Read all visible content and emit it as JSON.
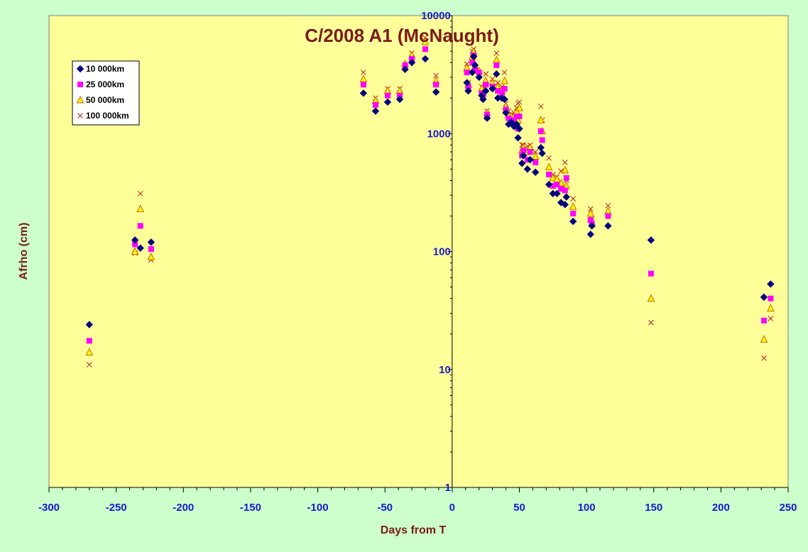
{
  "chart_data": {
    "type": "scatter",
    "title": "C/2008 A1 (McNaught)",
    "xlabel": "Days from T",
    "ylabel": "Afrho (cm)",
    "xlim": [
      -300,
      250
    ],
    "ylim": [
      1,
      10000
    ],
    "yscale": "log",
    "x_ticks": [
      "-300",
      "-250",
      "-200",
      "-150",
      "-100",
      "-50",
      "0",
      "50",
      "100",
      "150",
      "200",
      "250"
    ],
    "y_ticks": [
      "1",
      "10",
      "100",
      "1000",
      "10000"
    ],
    "legend_position": "top-left",
    "colors": {
      "plot_bg": "#ffff99",
      "outer_bg": "#ccffcc",
      "s10k": "#000080",
      "s25k": "#ff00ff",
      "s50k_fill": "#ffff00",
      "s50k_stroke": "#cc6600",
      "s100k": "#b22222"
    },
    "series": [
      {
        "name": "10 000km",
        "marker": "diamond",
        "points": [
          [
            -270,
            24
          ],
          [
            -236,
            125
          ],
          [
            -232,
            107
          ],
          [
            -224,
            120
          ],
          [
            -66,
            2200
          ],
          [
            -57,
            1550
          ],
          [
            -48,
            1850
          ],
          [
            -39,
            1950
          ],
          [
            -35,
            3500
          ],
          [
            -30,
            4000
          ],
          [
            -20,
            4300
          ],
          [
            -12,
            2250
          ],
          [
            11,
            2700
          ],
          [
            12,
            2300
          ],
          [
            15,
            3300
          ],
          [
            16,
            4500
          ],
          [
            17,
            3800
          ],
          [
            20,
            3000
          ],
          [
            22,
            2100
          ],
          [
            23,
            1950
          ],
          [
            25,
            2300
          ],
          [
            26,
            1350
          ],
          [
            30,
            2400
          ],
          [
            33,
            3200
          ],
          [
            34,
            2000
          ],
          [
            37,
            2000
          ],
          [
            39,
            1950
          ],
          [
            40,
            1500
          ],
          [
            42,
            1200
          ],
          [
            44,
            1250
          ],
          [
            46,
            1150
          ],
          [
            48,
            1200
          ],
          [
            49,
            920
          ],
          [
            50,
            1100
          ],
          [
            52,
            560
          ],
          [
            53,
            650
          ],
          [
            56,
            500
          ],
          [
            58,
            600
          ],
          [
            62,
            470
          ],
          [
            66,
            760
          ],
          [
            67,
            680
          ],
          [
            72,
            370
          ],
          [
            75,
            310
          ],
          [
            78,
            310
          ],
          [
            81,
            260
          ],
          [
            84,
            250
          ],
          [
            85,
            290
          ],
          [
            90,
            180
          ],
          [
            103,
            140
          ],
          [
            104,
            165
          ],
          [
            116,
            165
          ],
          [
            148,
            125
          ],
          [
            232,
            41
          ],
          [
            237,
            53
          ]
        ]
      },
      {
        "name": "25 000km",
        "marker": "square",
        "points": [
          [
            -270,
            17.5
          ],
          [
            -236,
            115
          ],
          [
            -232,
            165
          ],
          [
            -224,
            105
          ],
          [
            -66,
            2600
          ],
          [
            -57,
            1750
          ],
          [
            -48,
            2100
          ],
          [
            -39,
            2100
          ],
          [
            -35,
            3800
          ],
          [
            -30,
            4300
          ],
          [
            -20,
            5200
          ],
          [
            -12,
            2600
          ],
          [
            11,
            3300
          ],
          [
            12,
            2500
          ],
          [
            15,
            4000
          ],
          [
            16,
            4600
          ],
          [
            17,
            3500
          ],
          [
            20,
            3300
          ],
          [
            22,
            2200
          ],
          [
            23,
            2100
          ],
          [
            25,
            2600
          ],
          [
            26,
            1450
          ],
          [
            30,
            2500
          ],
          [
            33,
            3800
          ],
          [
            34,
            2300
          ],
          [
            37,
            2200
          ],
          [
            39,
            2400
          ],
          [
            40,
            1600
          ],
          [
            42,
            1350
          ],
          [
            44,
            1300
          ],
          [
            46,
            1250
          ],
          [
            48,
            1400
          ],
          [
            49,
            1100
          ],
          [
            50,
            1400
          ],
          [
            52,
            650
          ],
          [
            53,
            720
          ],
          [
            56,
            600
          ],
          [
            58,
            700
          ],
          [
            62,
            570
          ],
          [
            66,
            1050
          ],
          [
            67,
            880
          ],
          [
            72,
            450
          ],
          [
            75,
            360
          ],
          [
            78,
            370
          ],
          [
            81,
            340
          ],
          [
            84,
            330
          ],
          [
            85,
            420
          ],
          [
            90,
            210
          ],
          [
            103,
            185
          ],
          [
            104,
            170
          ],
          [
            116,
            200
          ],
          [
            148,
            65
          ],
          [
            232,
            26
          ],
          [
            237,
            40
          ]
        ]
      },
      {
        "name": "50 000km",
        "marker": "triangle",
        "points": [
          [
            -270,
            14
          ],
          [
            -236,
            100
          ],
          [
            -232,
            230
          ],
          [
            -224,
            90
          ],
          [
            -66,
            2900
          ],
          [
            -57,
            1900
          ],
          [
            -48,
            2300
          ],
          [
            -39,
            2300
          ],
          [
            -35,
            3900
          ],
          [
            -30,
            4600
          ],
          [
            -20,
            6000
          ],
          [
            -12,
            2800
          ],
          [
            11,
            3600
          ],
          [
            12,
            2600
          ],
          [
            15,
            4500
          ],
          [
            16,
            4900
          ],
          [
            17,
            3700
          ],
          [
            20,
            3400
          ],
          [
            22,
            2400
          ],
          [
            23,
            2200
          ],
          [
            25,
            2800
          ],
          [
            26,
            1500
          ],
          [
            30,
            2700
          ],
          [
            33,
            4200
          ],
          [
            34,
            2500
          ],
          [
            37,
            2300
          ],
          [
            39,
            2800
          ],
          [
            40,
            1700
          ],
          [
            42,
            1450
          ],
          [
            44,
            1400
          ],
          [
            46,
            1400
          ],
          [
            48,
            1550
          ],
          [
            49,
            1300
          ],
          [
            50,
            1650
          ],
          [
            52,
            730
          ],
          [
            53,
            760
          ],
          [
            56,
            700
          ],
          [
            58,
            760
          ],
          [
            62,
            640
          ],
          [
            66,
            1300
          ],
          [
            67,
            1050
          ],
          [
            72,
            520
          ],
          [
            75,
            420
          ],
          [
            78,
            410
          ],
          [
            81,
            380
          ],
          [
            84,
            490
          ],
          [
            85,
            360
          ],
          [
            90,
            240
          ],
          [
            103,
            210
          ],
          [
            104,
            175
          ],
          [
            116,
            220
          ],
          [
            148,
            40
          ],
          [
            232,
            18
          ],
          [
            237,
            33
          ]
        ]
      },
      {
        "name": "100 000km",
        "marker": "x",
        "points": [
          [
            -270,
            11
          ],
          [
            -236,
            97
          ],
          [
            -232,
            310
          ],
          [
            -224,
            85
          ],
          [
            -66,
            3300
          ],
          [
            -57,
            2000
          ],
          [
            -48,
            2400
          ],
          [
            -39,
            2400
          ],
          [
            -35,
            3800
          ],
          [
            -30,
            4800
          ],
          [
            -20,
            6500
          ],
          [
            -12,
            3100
          ],
          [
            11,
            3900
          ],
          [
            12,
            2700
          ],
          [
            15,
            5000
          ],
          [
            16,
            5200
          ],
          [
            17,
            3500
          ],
          [
            20,
            3300
          ],
          [
            22,
            2500
          ],
          [
            23,
            2400
          ],
          [
            25,
            3200
          ],
          [
            26,
            1550
          ],
          [
            30,
            2900
          ],
          [
            33,
            4800
          ],
          [
            34,
            2700
          ],
          [
            37,
            2500
          ],
          [
            39,
            3300
          ],
          [
            40,
            1800
          ],
          [
            42,
            1550
          ],
          [
            44,
            1450
          ],
          [
            46,
            1500
          ],
          [
            48,
            1650
          ],
          [
            49,
            1800
          ],
          [
            50,
            1850
          ],
          [
            52,
            800
          ],
          [
            53,
            800
          ],
          [
            56,
            780
          ],
          [
            58,
            800
          ],
          [
            62,
            700
          ],
          [
            66,
            1700
          ],
          [
            67,
            1300
          ],
          [
            72,
            620
          ],
          [
            75,
            450
          ],
          [
            78,
            430
          ],
          [
            81,
            480
          ],
          [
            84,
            570
          ],
          [
            85,
            400
          ],
          [
            90,
            280
          ],
          [
            103,
            230
          ],
          [
            104,
            190
          ],
          [
            116,
            245
          ],
          [
            148,
            25
          ],
          [
            232,
            12.5
          ],
          [
            237,
            27
          ]
        ]
      }
    ]
  }
}
